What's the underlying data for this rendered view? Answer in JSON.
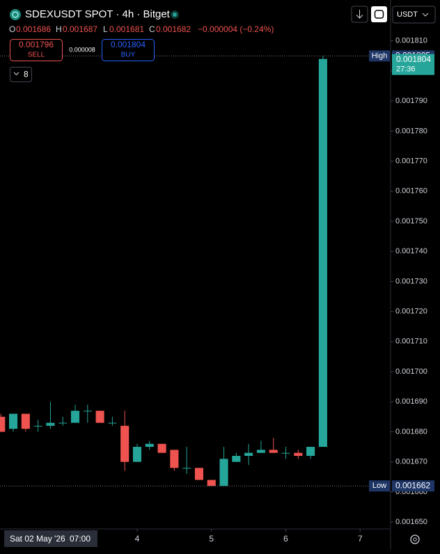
{
  "header": {
    "title": "SDEXUSDT SPOT · 4h · Bitget",
    "quote_currency": "USDT",
    "ohlc": {
      "open_label": "O",
      "open": "0.001686",
      "high_label": "H",
      "high": "0.001687",
      "low_label": "L",
      "low": "0.001681",
      "close_label": "C",
      "close": "0.001682",
      "change": "−0.000004 (−0.24%)"
    },
    "order": {
      "sell_price": "0.001796",
      "sell_label": "SELL",
      "spread": "0.000008",
      "buy_price": "0.001804",
      "buy_label": "BUY"
    },
    "indicators_count": "8"
  },
  "chart_data": {
    "type": "candlestick",
    "up_color": "#26a69a",
    "down_color": "#ef5350",
    "open": [
      0.001685,
      0.001681,
      0.001686,
      0.001682,
      0.001682,
      0.001683,
      0.001683,
      0.001687,
      0.001687,
      0.001683,
      0.001682,
      0.00167,
      0.001675,
      0.001676,
      0.001674,
      0.001668,
      0.001668,
      0.001664,
      0.001662,
      0.00167,
      0.001672,
      0.001673,
      0.001674,
      0.001673,
      0.001673,
      0.001672,
      0.001675
    ],
    "high": [
      0.001686,
      0.001686,
      0.001686,
      0.001684,
      0.00169,
      0.001685,
      0.001689,
      0.001689,
      0.001687,
      0.001685,
      0.001687,
      0.001676,
      0.001677,
      0.001676,
      0.001674,
      0.001675,
      0.001668,
      0.001664,
      0.001675,
      0.001673,
      0.001676,
      0.001677,
      0.001678,
      0.001675,
      0.001674,
      0.001675,
      0.001805
    ],
    "low": [
      0.00168,
      0.00168,
      0.00168,
      0.00168,
      0.001681,
      0.001682,
      0.001683,
      0.001683,
      0.001683,
      0.001682,
      0.001667,
      0.00167,
      0.001674,
      0.001673,
      0.001667,
      0.001666,
      0.001664,
      0.001662,
      0.001662,
      0.00167,
      0.001669,
      0.001673,
      0.001673,
      0.001671,
      0.001671,
      0.001671,
      0.001675
    ],
    "close": [
      0.00168,
      0.001686,
      0.001681,
      0.001682,
      0.001683,
      0.001683,
      0.001687,
      0.001687,
      0.001683,
      0.001683,
      0.00167,
      0.001675,
      0.001676,
      0.001673,
      0.001668,
      0.001668,
      0.001664,
      0.001662,
      0.001671,
      0.001672,
      0.001673,
      0.001674,
      0.001673,
      0.001673,
      0.001672,
      0.001675,
      0.001804
    ],
    "xlim": [
      -0.07,
      31.4
    ],
    "xticks": [
      {
        "value": 11,
        "label": "4"
      },
      {
        "value": 17,
        "label": "5"
      },
      {
        "value": 23,
        "label": "6"
      },
      {
        "value": 29,
        "label": "7"
      }
    ],
    "x_cursor_label": "Sat 02 May '26",
    "x_cursor_time": "07:00",
    "ylim": [
      0.0016477,
      0.0018236
    ],
    "yticks": [
      {
        "value": 0.00165,
        "label": "0.001650"
      },
      {
        "value": 0.00166,
        "label": "0.001660"
      },
      {
        "value": 0.00167,
        "label": "0.001670"
      },
      {
        "value": 0.00168,
        "label": "0.001680"
      },
      {
        "value": 0.00169,
        "label": "0.001690"
      },
      {
        "value": 0.0017,
        "label": "0.001700"
      },
      {
        "value": 0.00171,
        "label": "0.001710"
      },
      {
        "value": 0.00172,
        "label": "0.001720"
      },
      {
        "value": 0.00173,
        "label": "0.001730"
      },
      {
        "value": 0.00174,
        "label": "0.001740"
      },
      {
        "value": 0.00175,
        "label": "0.001750"
      },
      {
        "value": 0.00176,
        "label": "0.001760"
      },
      {
        "value": 0.00177,
        "label": "0.001770"
      },
      {
        "value": 0.00178,
        "label": "0.001780"
      },
      {
        "value": 0.00179,
        "label": "0.001790"
      },
      {
        "value": 0.0018,
        "label": "0.001800"
      },
      {
        "value": 0.00181,
        "label": "0.001810"
      }
    ],
    "price_markers": [
      {
        "name": "High",
        "value": 0.001805
      },
      {
        "name": "Low",
        "value": 0.001662
      }
    ],
    "current_price": {
      "value": 0.001804,
      "countdown": "27:36",
      "color": "#26a69a"
    }
  }
}
